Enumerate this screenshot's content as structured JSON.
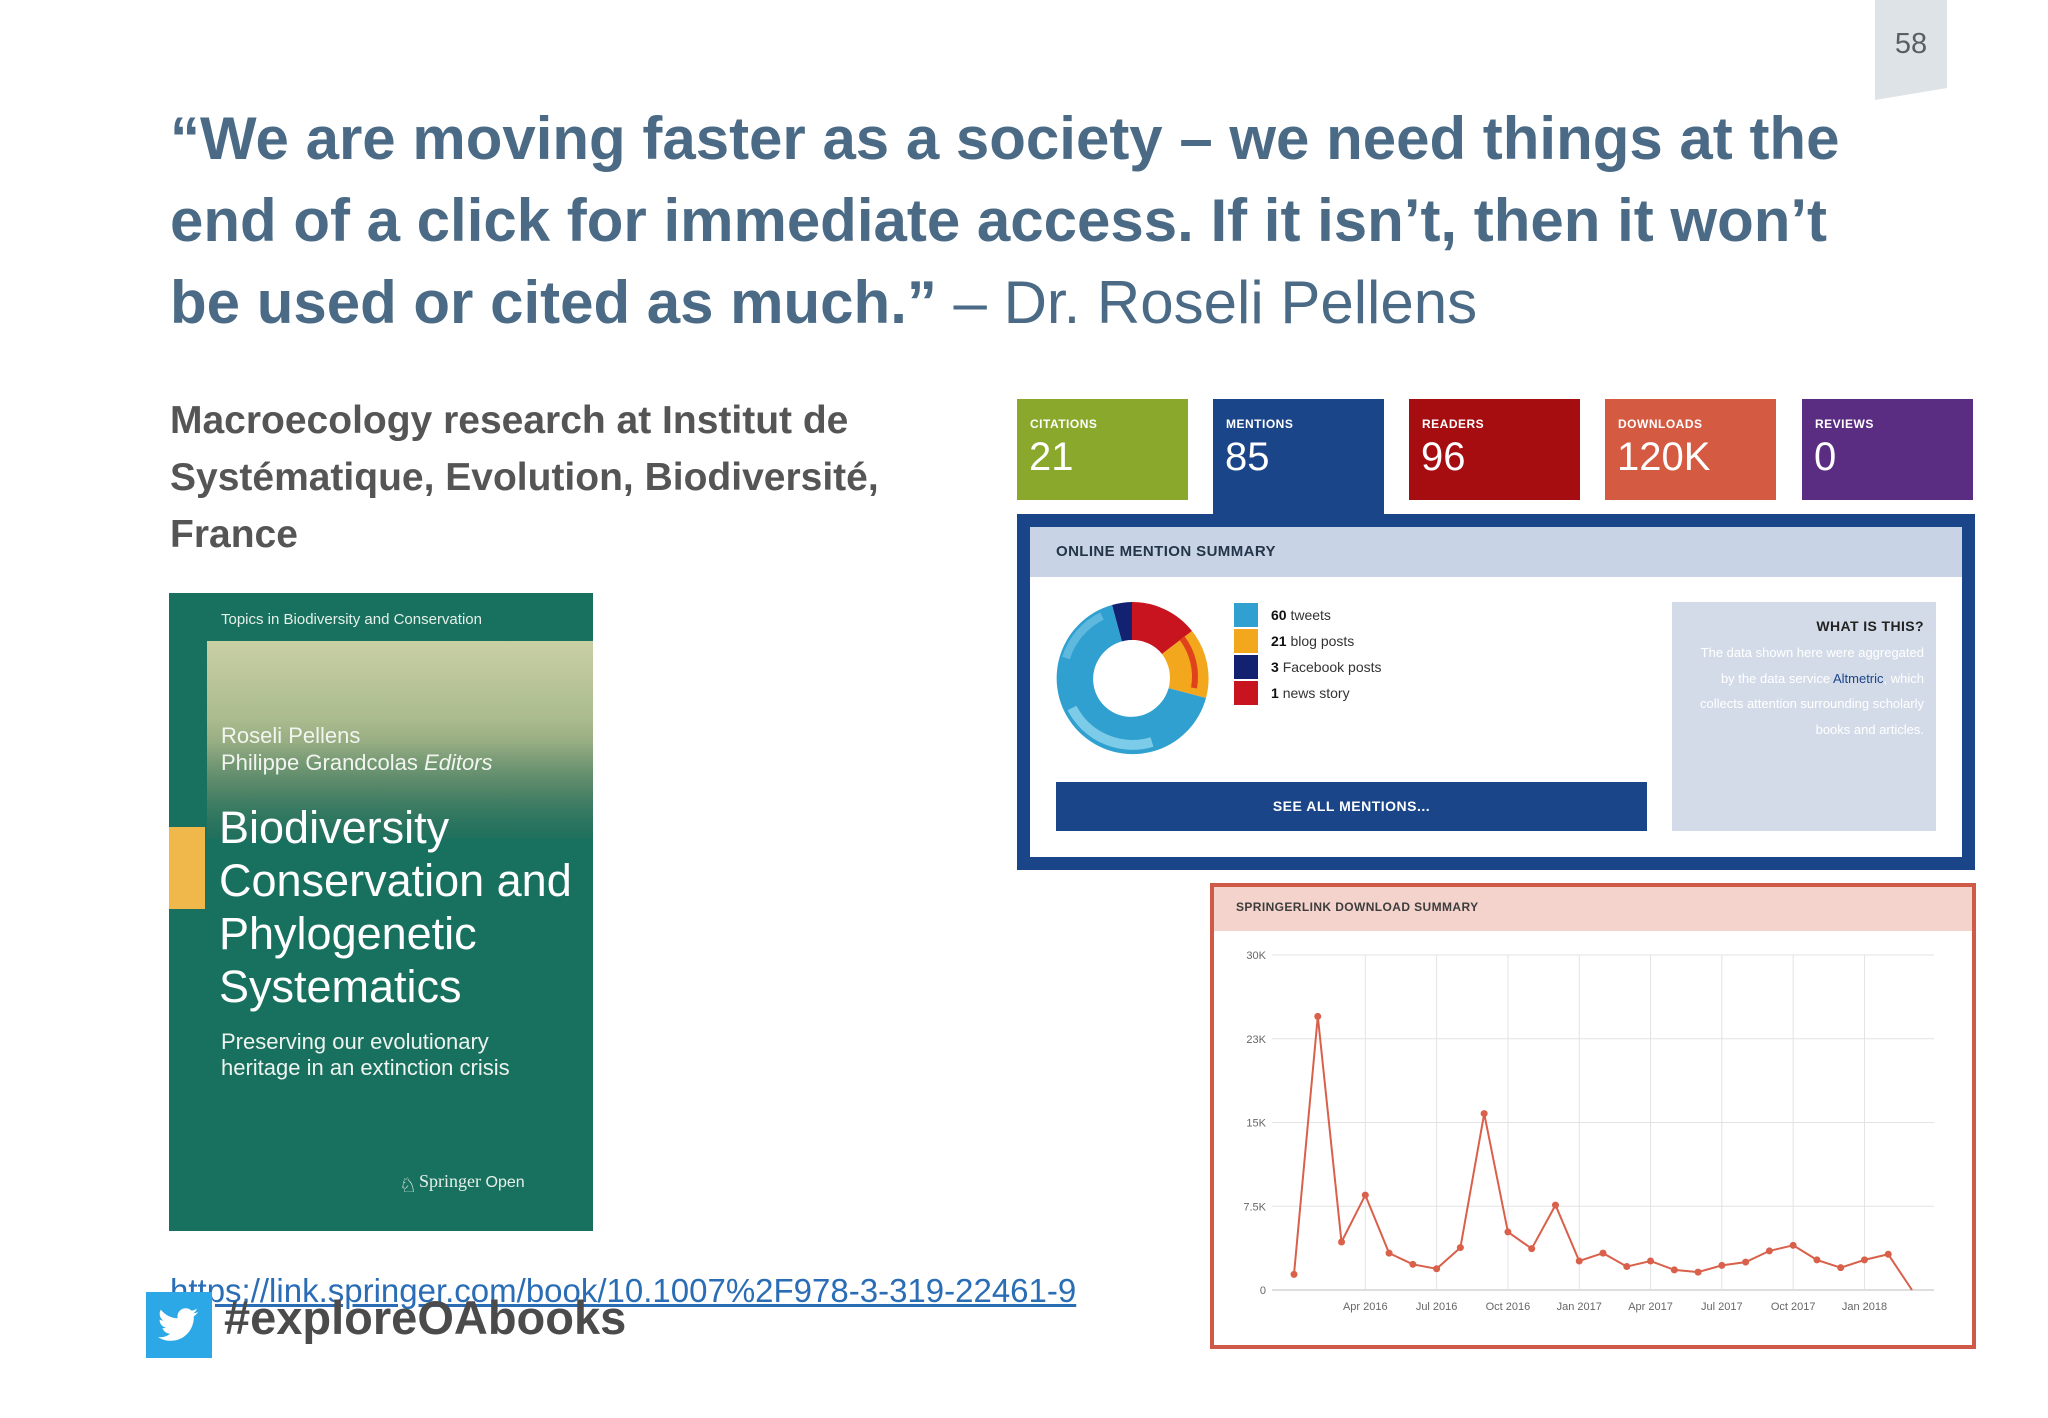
{
  "page_number": "58",
  "quote": {
    "text": "“We are moving faster as a society – we need things at the end of a click for immediate access. If it isn’t, then it won’t be used or cited as much.”",
    "attribution": "– Dr. Roseli Pellens"
  },
  "subtitle": "Macroecology research at Institut de Systématique, Evolution, Biodiversité, France",
  "cover": {
    "series": "Topics in Biodiversity and Conservation",
    "editor1": "Roseli Pellens",
    "editor2": "Philippe Grandcolas",
    "editors_role": "Editors",
    "title": "Biodiversity Conservation and Phylogenetic Systematics",
    "subtitle": "Preserving our evolutionary heritage in an extinction crisis",
    "publisher": "Springer",
    "publisher_suffix": "Open"
  },
  "link": "https://link.springer.com/book/10.1007%2F978-3-319-22461-9",
  "hashtag": "#exploreOAbooks",
  "metrics": [
    {
      "label": "CITATIONS",
      "value": "21",
      "color": "#8aa82c"
    },
    {
      "label": "MENTIONS",
      "value": "85",
      "color": "#1b4589"
    },
    {
      "label": "READERS",
      "value": "96",
      "color": "#a50d10"
    },
    {
      "label": "DOWNLOADS",
      "value": "120K",
      "color": "#d45a42"
    },
    {
      "label": "REVIEWS",
      "value": "0",
      "color": "#5a2d82"
    }
  ],
  "mention_summary": {
    "header": "ONLINE MENTION SUMMARY",
    "items": [
      {
        "count": "60",
        "label": "tweets",
        "color": "#2fa0cf"
      },
      {
        "count": "21",
        "label": "blog posts",
        "color": "#f2a71d"
      },
      {
        "count": "3",
        "label": "Facebook posts",
        "color": "#122170"
      },
      {
        "count": "1",
        "label": "news story",
        "color": "#c8141e"
      }
    ],
    "button": "SEE ALL MENTIONS...",
    "what_title": "WHAT IS THIS?",
    "what_text_pre": "The data shown here were aggregated by the data service",
    "what_link": "Altmetric",
    "what_text_post": ", which collects attention surrounding scholarly books and articles."
  },
  "chart_data": {
    "type": "line",
    "title": "SPRINGERLINK DOWNLOAD SUMMARY",
    "xlabel": "",
    "ylabel": "",
    "ylim": [
      0,
      30000
    ],
    "yticks": [
      {
        "label": "30K",
        "value": 30000
      },
      {
        "label": "23K",
        "value": 22500
      },
      {
        "label": "15K",
        "value": 15000
      },
      {
        "label": "7.5K",
        "value": 7500
      },
      {
        "label": "0",
        "value": 0
      }
    ],
    "xticks": [
      "Apr 2016",
      "Jul 2016",
      "Oct 2016",
      "Jan 2017",
      "Apr 2017",
      "Jul 2017",
      "Oct 2017",
      "Jan 2018"
    ],
    "x": [
      "2016-01",
      "2016-02",
      "2016-03",
      "2016-04",
      "2016-05",
      "2016-06",
      "2016-07",
      "2016-08",
      "2016-09",
      "2016-10",
      "2016-11",
      "2016-12",
      "2017-01",
      "2017-02",
      "2017-03",
      "2017-04",
      "2017-05",
      "2017-06",
      "2017-07",
      "2017-08",
      "2017-09",
      "2017-10",
      "2017-11",
      "2017-12",
      "2018-01",
      "2018-02",
      "2018-03"
    ],
    "series": [
      {
        "values": [
          1400,
          24500,
          4300,
          8500,
          3300,
          2300,
          1900,
          3800,
          15800,
          5200,
          3700,
          7600,
          2600,
          3300,
          2100,
          2600,
          1800,
          1600,
          2200,
          2500,
          3500,
          4000,
          2700,
          2000,
          2700,
          3200,
          0
        ]
      }
    ],
    "color": "#d9604a",
    "grid": true
  }
}
